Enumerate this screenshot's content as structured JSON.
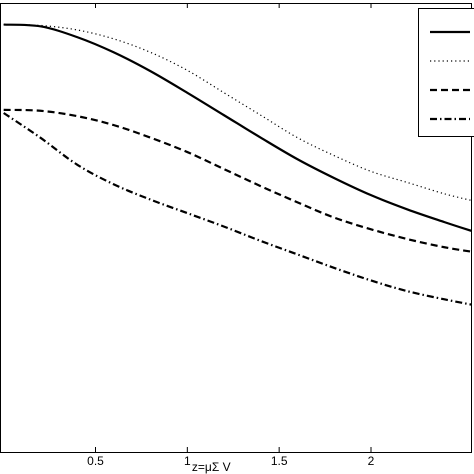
{
  "chart_data": {
    "type": "line",
    "xlabel": "z=μΣ V",
    "xlim": [
      -0.02,
      2.55
    ],
    "ylim": [
      0,
      1
    ],
    "x_ticks": [
      0.5,
      1,
      1.5,
      2
    ],
    "x_tick_labels": [
      "0.5",
      "1",
      "1.5",
      "2"
    ],
    "grid": false,
    "legend_position": "top-right",
    "series": [
      {
        "style": "solid",
        "x": [
          0,
          0.2,
          0.4,
          0.6,
          0.8,
          1.0,
          1.2,
          1.4,
          1.6,
          1.8,
          2.0,
          2.2,
          2.4,
          2.55
        ],
        "y": [
          0.952,
          0.948,
          0.924,
          0.89,
          0.848,
          0.8,
          0.75,
          0.7,
          0.652,
          0.61,
          0.572,
          0.54,
          0.512,
          0.492
        ]
      },
      {
        "style": "dotted",
        "x": [
          0,
          0.2,
          0.4,
          0.6,
          0.8,
          1.0,
          1.2,
          1.4,
          1.6,
          1.8,
          2.0,
          2.2,
          2.4,
          2.55
        ],
        "y": [
          0.952,
          0.95,
          0.94,
          0.92,
          0.89,
          0.85,
          0.8,
          0.75,
          0.7,
          0.66,
          0.625,
          0.6,
          0.575,
          0.56
        ]
      },
      {
        "style": "dashed",
        "x": [
          0,
          0.2,
          0.4,
          0.6,
          0.8,
          1.0,
          1.2,
          1.4,
          1.6,
          1.8,
          2.0,
          2.2,
          2.4,
          2.55
        ],
        "y": [
          0.762,
          0.76,
          0.748,
          0.728,
          0.7,
          0.668,
          0.63,
          0.592,
          0.556,
          0.522,
          0.496,
          0.474,
          0.456,
          0.446
        ]
      },
      {
        "style": "dashdot",
        "x": [
          0,
          0.2,
          0.4,
          0.6,
          0.8,
          1.0,
          1.2,
          1.4,
          1.6,
          1.8,
          2.0,
          2.2,
          2.4,
          2.55
        ],
        "y": [
          0.755,
          0.7,
          0.64,
          0.596,
          0.562,
          0.532,
          0.502,
          0.47,
          0.44,
          0.41,
          0.382,
          0.358,
          0.34,
          0.328
        ]
      }
    ]
  }
}
